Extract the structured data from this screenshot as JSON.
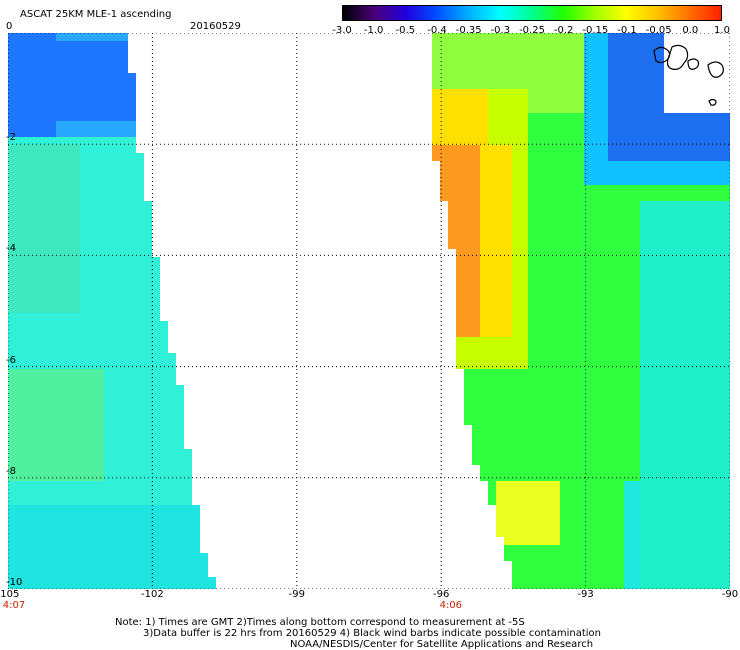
{
  "header": {
    "title": "ASCAT 25KM MLE-1 ascending",
    "date": "20160529"
  },
  "colorbar": {
    "labels": [
      "-3.0",
      "-1.0",
      "-0.5",
      "-0.4",
      "-0.35",
      "-0.3",
      "-0.25",
      "-0.2",
      "-0.15",
      "-0.1",
      "-0.05",
      "0.0",
      "1.0"
    ],
    "colors": [
      "#000000",
      "#4a0078",
      "#2000e0",
      "#0050ff",
      "#00b0ff",
      "#00ffff",
      "#00ff90",
      "#20ff00",
      "#a0ff00",
      "#ffff00",
      "#ffc000",
      "#ff7000",
      "#ff2000"
    ]
  },
  "map": {
    "x_ticks": [
      "-105",
      "-102",
      "-99",
      "-96",
      "-93",
      "-90"
    ],
    "y_ticks": [
      "0",
      "-2",
      "-4",
      "-6",
      "-8",
      "-10"
    ],
    "x_range": [
      -105,
      -90
    ],
    "y_range": [
      -10,
      0
    ],
    "grid": "dotted",
    "pass_times": [
      {
        "label": "4:07",
        "lon": -105
      },
      {
        "label": "4:06",
        "lon": -95.8
      }
    ],
    "swaths": [
      {
        "name": "west",
        "edge_east": [
          [
            -102.5,
            0
          ],
          [
            -102.3,
            -2
          ],
          [
            -102.0,
            -3.5
          ],
          [
            -101.8,
            -5
          ],
          [
            -101.4,
            -6.5
          ],
          [
            -101.2,
            -8
          ],
          [
            -100.9,
            -9.5
          ],
          [
            -100.6,
            -10
          ]
        ]
      },
      {
        "name": "east",
        "edge_west": [
          [
            -96.3,
            0
          ],
          [
            -96.2,
            -2
          ],
          [
            -95.8,
            -4
          ],
          [
            -95.7,
            -5.8
          ],
          [
            -95.4,
            -7.5
          ],
          [
            -95.0,
            -8.5
          ],
          [
            -94.5,
            -10
          ]
        ]
      }
    ]
  },
  "notes": {
    "line1": "Note: 1) Times are GMT 2)Times along bottom correspond to measurement at -5S",
    "line2": "3)Data buffer is 22 hrs from 20160529 4) Black wind barbs indicate possible contamination",
    "line3": "NOAA/NESDIS/Center for Satellite Applications and Research"
  }
}
